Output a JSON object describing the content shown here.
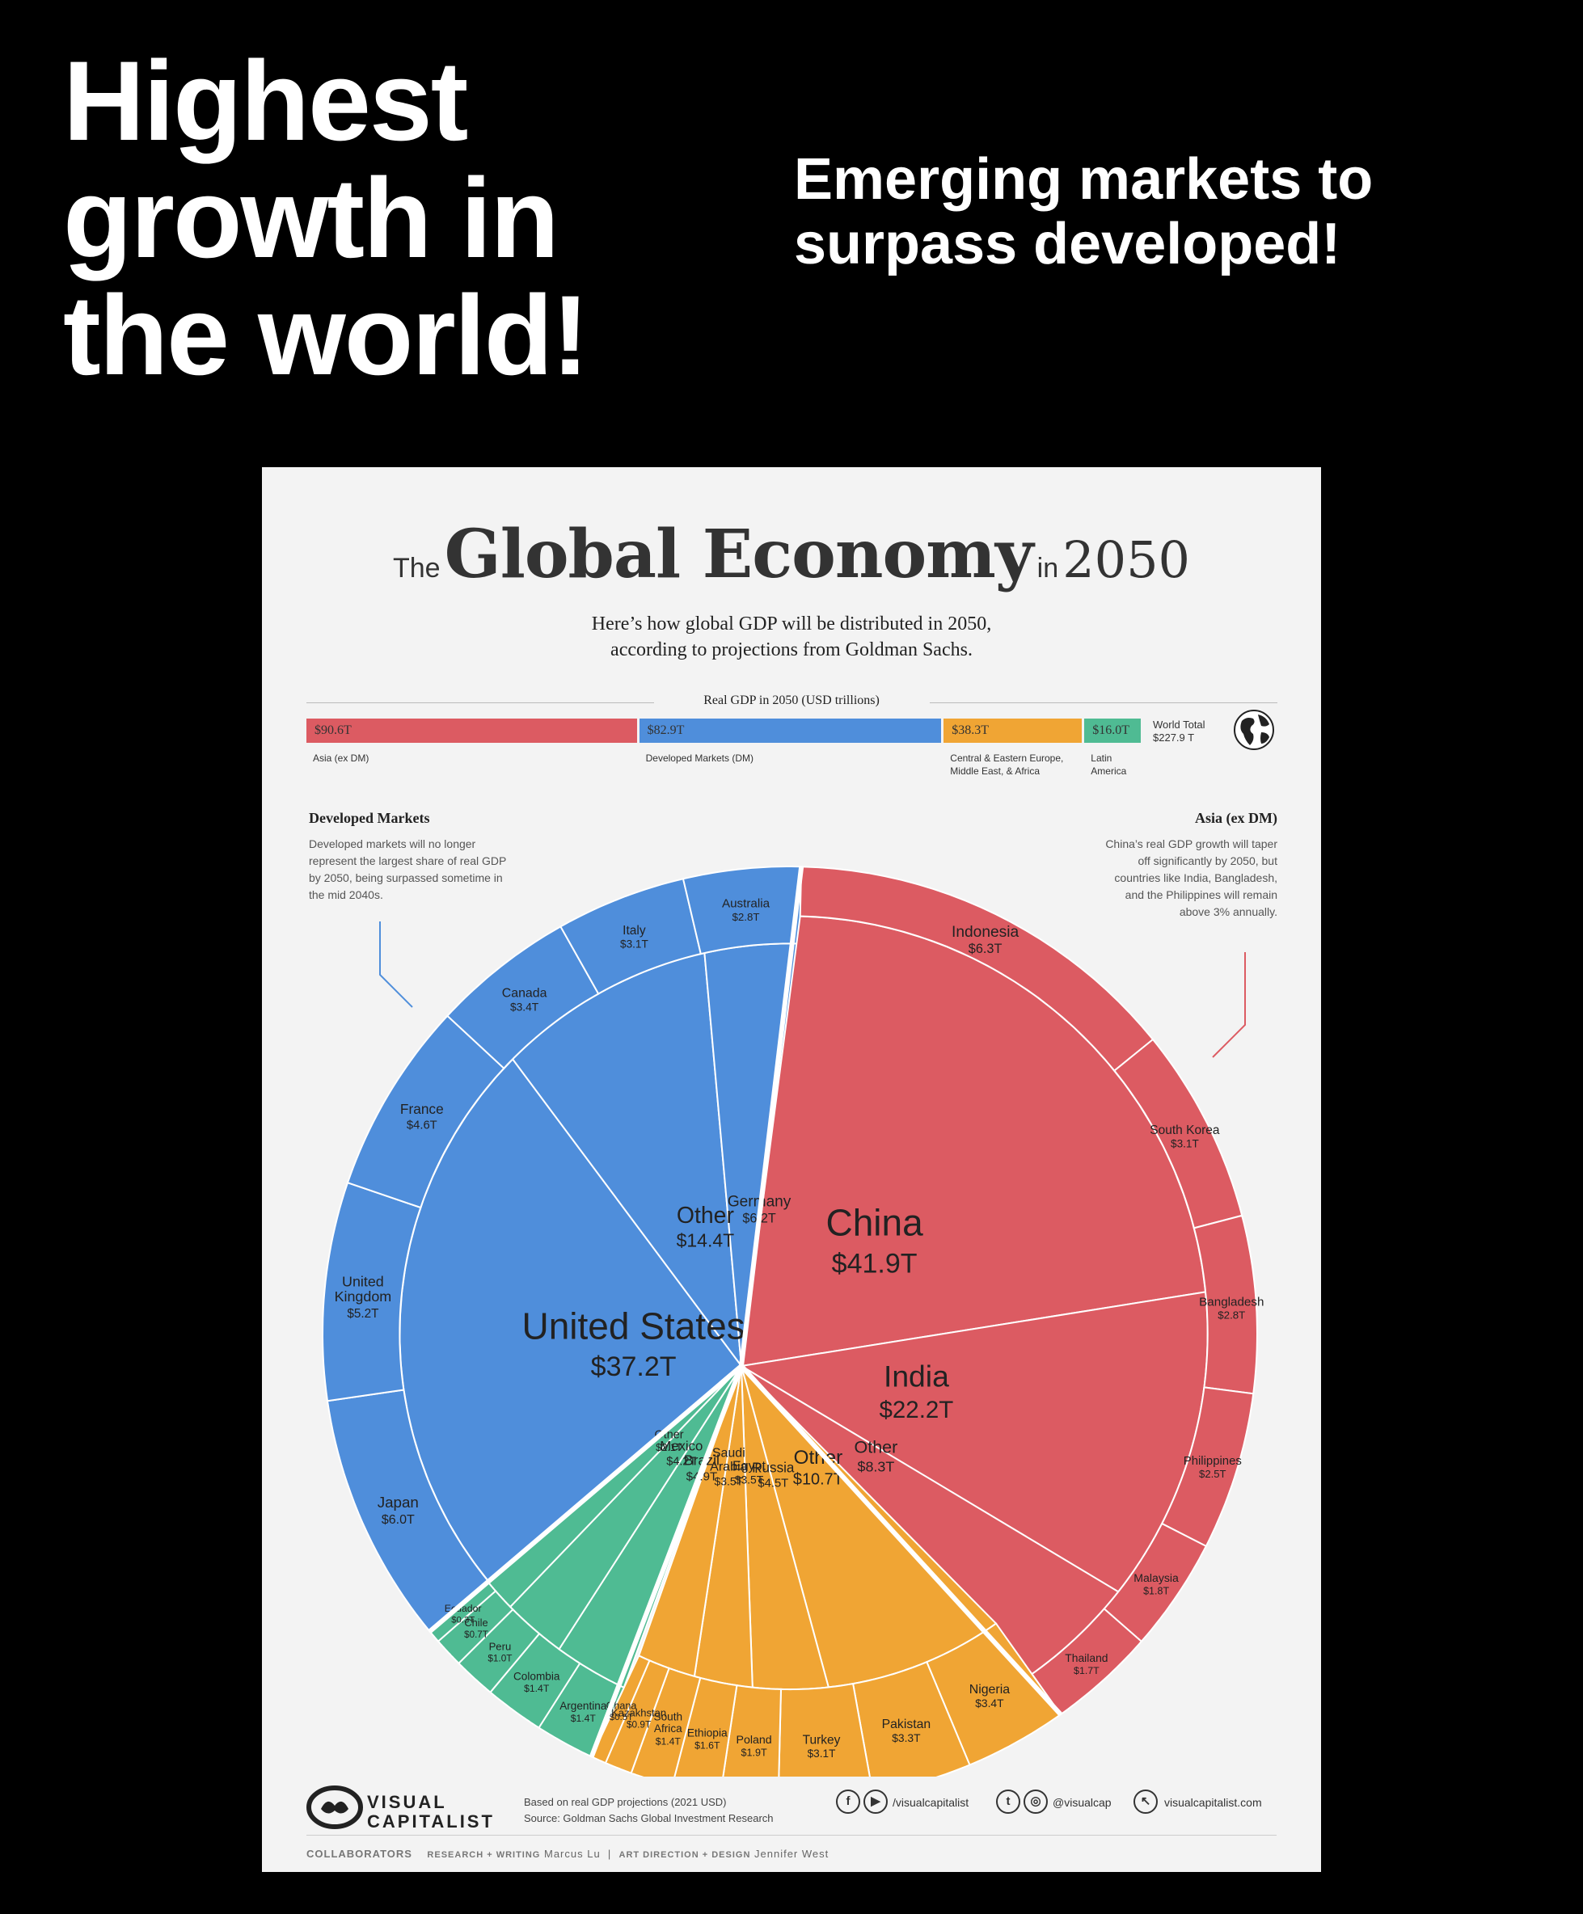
{
  "headline": "Highest\ngrowth in\nthe world!",
  "subheadline": "Emerging markets to\nsurpass  developed!",
  "infographic": {
    "title_pre": "The",
    "title_main": "Global Economy",
    "title_in": "in",
    "title_year": "2050",
    "subtitle": "Here’s how global GDP will be distributed in 2050,\naccording to projections from Goldman Sachs.",
    "bar_title": "Real GDP in 2050 (USD trillions)",
    "world_total": "World Total\n$227.9 T",
    "left_note_title": "Developed Markets",
    "left_note_body": "Developed markets will no longer represent the largest share of real GDP by 2050, being surpassed sometime in the mid 2040s.",
    "right_note_title": "Asia (ex DM)",
    "right_note_body": "China’s real GDP growth will taper off significantly by 2050, but countries like India, Bangladesh, and the Philippines will remain above 3% annually.",
    "footer_logo": "VISUAL\nCAPITALIST",
    "footer_source": "Based on real GDP projections (2021 USD)\nSource: Goldman Sachs Global Investment Research",
    "social_1": "/visualcapitalist",
    "social_2": "@visualcap",
    "social_3": "visualcapitalist.com",
    "collaborators": "COLLABORATORS",
    "credit_research": "RESEARCH + WRITING",
    "credit_research_name": "Marcus Lu",
    "credit_design": "ART DIRECTION + DESIGN",
    "credit_design_name": "Jennifer West"
  },
  "colors": {
    "asia": "#dc5b62",
    "developed": "#4f8edb",
    "ceemea": "#f0a534",
    "latam": "#4fbb93"
  },
  "chart_data": [
    {
      "type": "bar",
      "title": "Real GDP in 2050 (USD trillions)",
      "orientation": "horizontal-stacked",
      "categories": [
        "Asia (ex DM)",
        "Developed Markets (DM)",
        "Central & Eastern Europe, Middle East, & Africa",
        "Latin America"
      ],
      "values": [
        90.6,
        82.9,
        38.3,
        16.0
      ],
      "value_labels": [
        "$90.6T",
        "$82.9T",
        "$38.3T",
        "$16.0T"
      ],
      "total": 227.9
    },
    {
      "type": "pie",
      "title": "The Global Economy in 2050",
      "unit": "USD trillions",
      "groups": [
        {
          "name": "Developed Markets",
          "color_key": "developed",
          "items": [
            {
              "label": "United States",
              "value": 37.2,
              "text": "$37.2T"
            },
            {
              "label": "Other",
              "value": 14.4,
              "text": "$14.4T"
            },
            {
              "label": "Germany",
              "value": 6.2,
              "text": "$6.2T"
            },
            {
              "label": "Japan",
              "value": 6.0,
              "text": "$6.0T"
            },
            {
              "label": "United Kingdom",
              "value": 5.2,
              "text": "$5.2T"
            },
            {
              "label": "France",
              "value": 4.6,
              "text": "$4.6T"
            },
            {
              "label": "Canada",
              "value": 3.4,
              "text": "$3.4T"
            },
            {
              "label": "Italy",
              "value": 3.1,
              "text": "$3.1T"
            },
            {
              "label": "Australia",
              "value": 2.8,
              "text": "$2.8T"
            }
          ]
        },
        {
          "name": "Asia (ex DM)",
          "color_key": "asia",
          "items": [
            {
              "label": "China",
              "value": 41.9,
              "text": "$41.9T"
            },
            {
              "label": "India",
              "value": 22.2,
              "text": "$22.2T"
            },
            {
              "label": "Other",
              "value": 8.3,
              "text": "$8.3T"
            },
            {
              "label": "Indonesia",
              "value": 6.3,
              "text": "$6.3T"
            },
            {
              "label": "South Korea",
              "value": 3.1,
              "text": "$3.1T"
            },
            {
              "label": "Bangladesh",
              "value": 2.8,
              "text": "$2.8T"
            },
            {
              "label": "Philippines",
              "value": 2.5,
              "text": "$2.5T"
            },
            {
              "label": "Malaysia",
              "value": 1.8,
              "text": "$1.8T"
            },
            {
              "label": "Thailand",
              "value": 1.7,
              "text": "$1.7T"
            }
          ]
        },
        {
          "name": "Central & Eastern Europe, Middle East, & Africa",
          "color_key": "ceemea",
          "items": [
            {
              "label": "Other",
              "value": 10.7,
              "text": "$10.7T"
            },
            {
              "label": "Russia",
              "value": 4.5,
              "text": "$4.5T"
            },
            {
              "label": "Egypt",
              "value": 3.5,
              "text": "$3.5T"
            },
            {
              "label": "Saudi Arabia",
              "value": 3.5,
              "text": "$3.5T"
            },
            {
              "label": "Nigeria",
              "value": 3.4,
              "text": "$3.4T"
            },
            {
              "label": "Pakistan",
              "value": 3.3,
              "text": "$3.3T"
            },
            {
              "label": "Turkey",
              "value": 3.1,
              "text": "$3.1T"
            },
            {
              "label": "Poland",
              "value": 1.9,
              "text": "$1.9T"
            },
            {
              "label": "Ethiopia",
              "value": 1.6,
              "text": "$1.6T"
            },
            {
              "label": "South Africa",
              "value": 1.4,
              "text": "$1.4T"
            },
            {
              "label": "Kazakhstan",
              "value": 0.9,
              "text": "$0.9T"
            },
            {
              "label": "Ghana",
              "value": 0.5,
              "text": "$0.5T"
            }
          ]
        },
        {
          "name": "Latin America",
          "color_key": "latam",
          "items": [
            {
              "label": "Brazil",
              "value": 4.9,
              "text": "$4.9T"
            },
            {
              "label": "Mexico",
              "value": 4.2,
              "text": "$4.2T"
            },
            {
              "label": "Other",
              "value": 2.1,
              "text": "$2.1T"
            },
            {
              "label": "Argentina",
              "value": 1.4,
              "text": "$1.4T"
            },
            {
              "label": "Colombia",
              "value": 1.4,
              "text": "$1.4T"
            },
            {
              "label": "Peru",
              "value": 1.0,
              "text": "$1.0T"
            },
            {
              "label": "Chile",
              "value": 0.7,
              "text": "$0.7T"
            },
            {
              "label": "Ecuador",
              "value": 0.3,
              "text": "$0.3T"
            }
          ]
        }
      ]
    }
  ]
}
